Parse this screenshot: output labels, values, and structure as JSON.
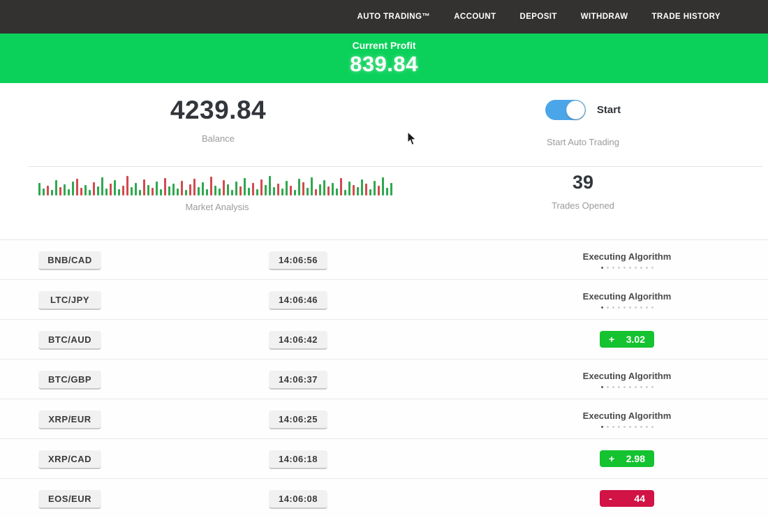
{
  "navbar": {
    "items": [
      "AUTO TRADING™",
      "ACCOUNT",
      "DEPOSIT",
      "WITHDRAW",
      "TRADE HISTORY"
    ]
  },
  "banner": {
    "label": "Current Profit",
    "value": "839.84"
  },
  "stats": {
    "balance": {
      "value": "4239.84",
      "label": "Balance"
    },
    "auto_trading": {
      "toggle_state": "on",
      "toggle_label": "Start",
      "label": "Start Auto Trading"
    },
    "market": {
      "label": "Market Analysis"
    },
    "trades": {
      "value": "39",
      "label": "Trades Opened"
    }
  },
  "colors": {
    "navbar_bg": "#333231",
    "banner_green": "#0bd15a",
    "badge_green": "#14c32f",
    "badge_red": "#d11346",
    "toggle_blue": "#4ba5e9",
    "bar_green": "#2fa84f",
    "bar_red": "#d34a4f"
  },
  "market_bars": [
    [
      18,
      "g"
    ],
    [
      10,
      "g"
    ],
    [
      14,
      "r"
    ],
    [
      8,
      "g"
    ],
    [
      22,
      "g"
    ],
    [
      12,
      "r"
    ],
    [
      16,
      "g"
    ],
    [
      9,
      "g"
    ],
    [
      20,
      "g"
    ],
    [
      24,
      "r"
    ],
    [
      11,
      "r"
    ],
    [
      15,
      "g"
    ],
    [
      8,
      "g"
    ],
    [
      19,
      "r"
    ],
    [
      13,
      "g"
    ],
    [
      26,
      "g"
    ],
    [
      10,
      "g"
    ],
    [
      17,
      "r"
    ],
    [
      22,
      "g"
    ],
    [
      9,
      "g"
    ],
    [
      14,
      "r"
    ],
    [
      28,
      "r"
    ],
    [
      12,
      "g"
    ],
    [
      18,
      "g"
    ],
    [
      8,
      "g"
    ],
    [
      23,
      "r"
    ],
    [
      15,
      "g"
    ],
    [
      11,
      "r"
    ],
    [
      20,
      "g"
    ],
    [
      9,
      "g"
    ],
    [
      25,
      "r"
    ],
    [
      13,
      "g"
    ],
    [
      17,
      "g"
    ],
    [
      10,
      "g"
    ],
    [
      21,
      "r"
    ],
    [
      8,
      "g"
    ],
    [
      16,
      "r"
    ],
    [
      24,
      "r"
    ],
    [
      12,
      "g"
    ],
    [
      19,
      "g"
    ],
    [
      9,
      "g"
    ],
    [
      27,
      "r"
    ],
    [
      14,
      "g"
    ],
    [
      10,
      "g"
    ],
    [
      22,
      "r"
    ],
    [
      16,
      "g"
    ],
    [
      8,
      "g"
    ],
    [
      20,
      "g"
    ],
    [
      13,
      "r"
    ],
    [
      25,
      "g"
    ],
    [
      11,
      "g"
    ],
    [
      18,
      "r"
    ],
    [
      9,
      "g"
    ],
    [
      23,
      "r"
    ],
    [
      15,
      "g"
    ],
    [
      28,
      "g"
    ],
    [
      12,
      "g"
    ],
    [
      17,
      "r"
    ],
    [
      10,
      "g"
    ],
    [
      21,
      "g"
    ],
    [
      14,
      "r"
    ],
    [
      8,
      "g"
    ],
    [
      24,
      "g"
    ],
    [
      19,
      "r"
    ],
    [
      11,
      "g"
    ],
    [
      26,
      "g"
    ],
    [
      9,
      "r"
    ],
    [
      16,
      "g"
    ],
    [
      22,
      "g"
    ],
    [
      13,
      "r"
    ],
    [
      18,
      "g"
    ],
    [
      10,
      "g"
    ],
    [
      25,
      "r"
    ],
    [
      8,
      "g"
    ],
    [
      20,
      "g"
    ],
    [
      15,
      "r"
    ],
    [
      12,
      "g"
    ],
    [
      23,
      "g"
    ],
    [
      17,
      "r"
    ],
    [
      9,
      "g"
    ],
    [
      21,
      "g"
    ],
    [
      14,
      "r"
    ],
    [
      26,
      "g"
    ],
    [
      11,
      "g"
    ],
    [
      18,
      "g"
    ]
  ],
  "trades_table": {
    "executing_dots_total": 10,
    "executing_dots_active": 1,
    "rows": [
      {
        "pair": "BNB/CAD",
        "time": "14:06:56",
        "status": {
          "type": "executing",
          "label": "Executing Algorithm"
        }
      },
      {
        "pair": "LTC/JPY",
        "time": "14:06:46",
        "status": {
          "type": "executing",
          "label": "Executing Algorithm"
        }
      },
      {
        "pair": "BTC/AUD",
        "time": "14:06:42",
        "status": {
          "type": "profit",
          "sign": "+",
          "value": "3.02"
        }
      },
      {
        "pair": "BTC/GBP",
        "time": "14:06:37",
        "status": {
          "type": "executing",
          "label": "Executing Algorithm"
        }
      },
      {
        "pair": "XRP/EUR",
        "time": "14:06:25",
        "status": {
          "type": "executing",
          "label": "Executing Algorithm"
        }
      },
      {
        "pair": "XRP/CAD",
        "time": "14:06:18",
        "status": {
          "type": "profit",
          "sign": "+",
          "value": "2.98"
        }
      },
      {
        "pair": "EOS/EUR",
        "time": "14:06:08",
        "status": {
          "type": "loss",
          "sign": "-",
          "value": "44"
        }
      }
    ]
  }
}
